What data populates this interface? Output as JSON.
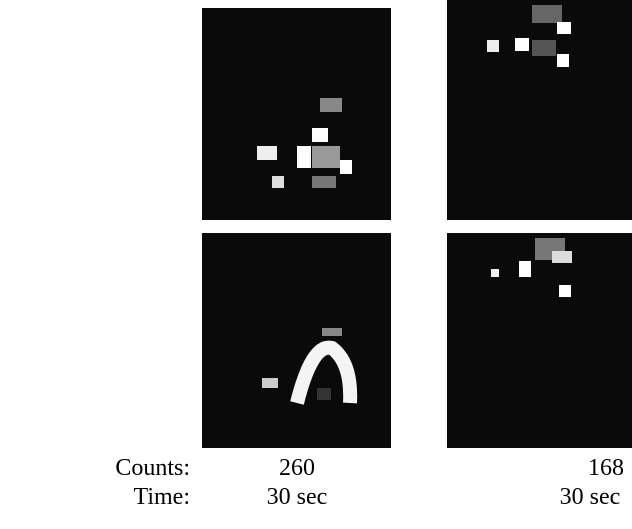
{
  "row_labels": [
    "Counts:",
    "Time:"
  ],
  "columns": [
    {
      "counts": 260,
      "time": "30 sec"
    },
    {
      "counts": 168,
      "time": "30 sec"
    }
  ]
}
